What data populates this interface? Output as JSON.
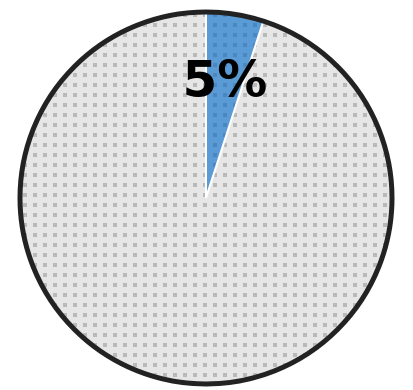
{
  "chart_data": {
    "type": "pie",
    "slices": [
      {
        "value": 5,
        "label": "5%",
        "color": "#5b9bd5"
      },
      {
        "value": 95,
        "label": "",
        "color": "#e6e6e6"
      }
    ],
    "start_angle_deg": 0,
    "outline_color": "#222222",
    "pattern_dot_color": "#b9b9b9",
    "legend": false
  }
}
